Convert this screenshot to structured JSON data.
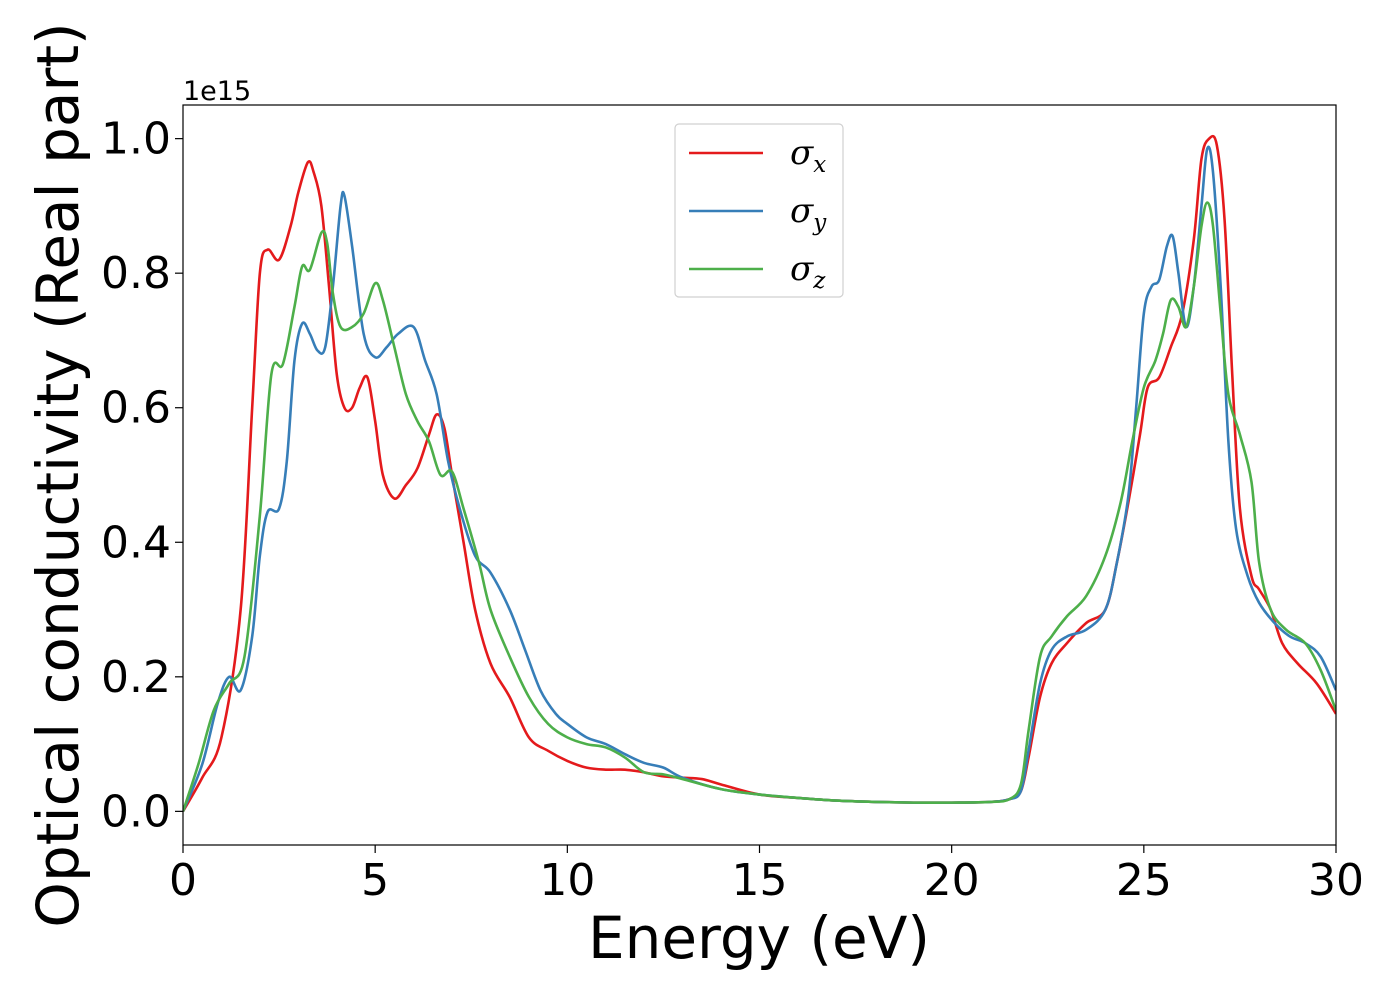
{
  "chart_data": {
    "type": "line",
    "title": "",
    "xlabel": "Energy (eV)",
    "ylabel": "Optical conductivity (Real part)",
    "y_offset_label": "1e15",
    "xlim": [
      0,
      30
    ],
    "ylim": [
      -0.05,
      1.05
    ],
    "xticks": [
      0,
      5,
      10,
      15,
      20,
      25,
      30
    ],
    "xtick_labels": [
      "0",
      "5",
      "10",
      "15",
      "20",
      "25",
      "30"
    ],
    "yticks": [
      0.0,
      0.2,
      0.4,
      0.6,
      0.8,
      1.0
    ],
    "ytick_labels": [
      "0.0",
      "0.2",
      "0.4",
      "0.6",
      "0.8",
      "1.0"
    ],
    "grid": false,
    "legend_position": "top-center",
    "series": [
      {
        "name": "σx",
        "symbol": "σ",
        "subscript": "x",
        "color": "#e41a1c",
        "points": [
          [
            0,
            0
          ],
          [
            0.5,
            0.05
          ],
          [
            1.0,
            0.11
          ],
          [
            1.5,
            0.3
          ],
          [
            1.8,
            0.6
          ],
          [
            2.0,
            0.8
          ],
          [
            2.2,
            0.835
          ],
          [
            2.5,
            0.82
          ],
          [
            2.8,
            0.87
          ],
          [
            3.0,
            0.92
          ],
          [
            3.25,
            0.965
          ],
          [
            3.4,
            0.95
          ],
          [
            3.6,
            0.9
          ],
          [
            3.8,
            0.78
          ],
          [
            4.0,
            0.65
          ],
          [
            4.2,
            0.6
          ],
          [
            4.4,
            0.6
          ],
          [
            4.6,
            0.63
          ],
          [
            4.8,
            0.645
          ],
          [
            5.0,
            0.58
          ],
          [
            5.2,
            0.5
          ],
          [
            5.5,
            0.465
          ],
          [
            5.8,
            0.485
          ],
          [
            6.1,
            0.51
          ],
          [
            6.4,
            0.56
          ],
          [
            6.6,
            0.59
          ],
          [
            6.8,
            0.57
          ],
          [
            7.0,
            0.5
          ],
          [
            7.3,
            0.4
          ],
          [
            7.6,
            0.3
          ],
          [
            8.0,
            0.22
          ],
          [
            8.5,
            0.17
          ],
          [
            9.0,
            0.11
          ],
          [
            9.5,
            0.09
          ],
          [
            10.0,
            0.075
          ],
          [
            10.5,
            0.065
          ],
          [
            11.0,
            0.062
          ],
          [
            11.5,
            0.062
          ],
          [
            12.0,
            0.058
          ],
          [
            12.5,
            0.052
          ],
          [
            13.0,
            0.05
          ],
          [
            13.5,
            0.048
          ],
          [
            14.0,
            0.04
          ],
          [
            15.0,
            0.025
          ],
          [
            16.0,
            0.02
          ],
          [
            17.0,
            0.016
          ],
          [
            18.0,
            0.014
          ],
          [
            19.0,
            0.013
          ],
          [
            20.0,
            0.013
          ],
          [
            21.0,
            0.014
          ],
          [
            21.5,
            0.018
          ],
          [
            21.8,
            0.03
          ],
          [
            22.0,
            0.08
          ],
          [
            22.3,
            0.17
          ],
          [
            22.6,
            0.22
          ],
          [
            23.0,
            0.25
          ],
          [
            23.5,
            0.28
          ],
          [
            24.0,
            0.3
          ],
          [
            24.3,
            0.37
          ],
          [
            24.6,
            0.46
          ],
          [
            24.9,
            0.56
          ],
          [
            25.1,
            0.63
          ],
          [
            25.4,
            0.645
          ],
          [
            25.7,
            0.69
          ],
          [
            26.0,
            0.74
          ],
          [
            26.3,
            0.85
          ],
          [
            26.5,
            0.97
          ],
          [
            26.7,
            1.0
          ],
          [
            26.9,
            0.99
          ],
          [
            27.1,
            0.88
          ],
          [
            27.3,
            0.65
          ],
          [
            27.5,
            0.45
          ],
          [
            27.8,
            0.35
          ],
          [
            28.0,
            0.33
          ],
          [
            28.3,
            0.3
          ],
          [
            28.6,
            0.25
          ],
          [
            29.0,
            0.22
          ],
          [
            29.5,
            0.19
          ],
          [
            30.0,
            0.145
          ]
        ]
      },
      {
        "name": "σy",
        "symbol": "σ",
        "subscript": "y",
        "color": "#377eb8",
        "points": [
          [
            0,
            0
          ],
          [
            0.5,
            0.07
          ],
          [
            0.9,
            0.16
          ],
          [
            1.2,
            0.2
          ],
          [
            1.5,
            0.18
          ],
          [
            1.8,
            0.26
          ],
          [
            2.0,
            0.38
          ],
          [
            2.2,
            0.445
          ],
          [
            2.5,
            0.45
          ],
          [
            2.7,
            0.52
          ],
          [
            2.9,
            0.67
          ],
          [
            3.1,
            0.725
          ],
          [
            3.3,
            0.71
          ],
          [
            3.5,
            0.685
          ],
          [
            3.7,
            0.69
          ],
          [
            3.9,
            0.78
          ],
          [
            4.1,
            0.9
          ],
          [
            4.2,
            0.915
          ],
          [
            4.4,
            0.84
          ],
          [
            4.7,
            0.71
          ],
          [
            5.0,
            0.675
          ],
          [
            5.3,
            0.69
          ],
          [
            5.6,
            0.71
          ],
          [
            6.0,
            0.72
          ],
          [
            6.3,
            0.67
          ],
          [
            6.6,
            0.62
          ],
          [
            6.9,
            0.52
          ],
          [
            7.2,
            0.45
          ],
          [
            7.6,
            0.38
          ],
          [
            8.0,
            0.355
          ],
          [
            8.5,
            0.3
          ],
          [
            8.9,
            0.24
          ],
          [
            9.3,
            0.18
          ],
          [
            9.7,
            0.145
          ],
          [
            10.0,
            0.13
          ],
          [
            10.5,
            0.11
          ],
          [
            11.0,
            0.1
          ],
          [
            11.5,
            0.085
          ],
          [
            12.0,
            0.072
          ],
          [
            12.5,
            0.065
          ],
          [
            13.0,
            0.05
          ],
          [
            14.0,
            0.033
          ],
          [
            15.0,
            0.025
          ],
          [
            16.0,
            0.02
          ],
          [
            17.0,
            0.016
          ],
          [
            18.0,
            0.014
          ],
          [
            19.0,
            0.013
          ],
          [
            20.0,
            0.013
          ],
          [
            21.0,
            0.014
          ],
          [
            21.5,
            0.018
          ],
          [
            21.8,
            0.03
          ],
          [
            22.0,
            0.09
          ],
          [
            22.3,
            0.19
          ],
          [
            22.6,
            0.24
          ],
          [
            23.0,
            0.26
          ],
          [
            23.5,
            0.27
          ],
          [
            24.0,
            0.3
          ],
          [
            24.3,
            0.37
          ],
          [
            24.6,
            0.47
          ],
          [
            24.8,
            0.6
          ],
          [
            25.0,
            0.74
          ],
          [
            25.2,
            0.78
          ],
          [
            25.4,
            0.79
          ],
          [
            25.6,
            0.84
          ],
          [
            25.75,
            0.855
          ],
          [
            25.9,
            0.8
          ],
          [
            26.1,
            0.72
          ],
          [
            26.3,
            0.78
          ],
          [
            26.5,
            0.9
          ],
          [
            26.65,
            0.985
          ],
          [
            26.8,
            0.95
          ],
          [
            27.0,
            0.78
          ],
          [
            27.2,
            0.55
          ],
          [
            27.4,
            0.42
          ],
          [
            27.7,
            0.35
          ],
          [
            28.0,
            0.31
          ],
          [
            28.4,
            0.28
          ],
          [
            28.8,
            0.26
          ],
          [
            29.2,
            0.25
          ],
          [
            29.6,
            0.23
          ],
          [
            30.0,
            0.18
          ]
        ]
      },
      {
        "name": "σz",
        "symbol": "σ",
        "subscript": "z",
        "color": "#4daf4a",
        "points": [
          [
            0,
            0
          ],
          [
            0.4,
            0.07
          ],
          [
            0.8,
            0.15
          ],
          [
            1.2,
            0.19
          ],
          [
            1.6,
            0.23
          ],
          [
            2.0,
            0.44
          ],
          [
            2.3,
            0.65
          ],
          [
            2.6,
            0.665
          ],
          [
            2.9,
            0.75
          ],
          [
            3.1,
            0.81
          ],
          [
            3.3,
            0.805
          ],
          [
            3.6,
            0.86
          ],
          [
            3.75,
            0.845
          ],
          [
            3.9,
            0.77
          ],
          [
            4.1,
            0.72
          ],
          [
            4.4,
            0.72
          ],
          [
            4.7,
            0.74
          ],
          [
            5.0,
            0.785
          ],
          [
            5.2,
            0.76
          ],
          [
            5.5,
            0.69
          ],
          [
            5.8,
            0.62
          ],
          [
            6.1,
            0.58
          ],
          [
            6.4,
            0.55
          ],
          [
            6.7,
            0.5
          ],
          [
            7.0,
            0.505
          ],
          [
            7.3,
            0.45
          ],
          [
            7.7,
            0.37
          ],
          [
            8.0,
            0.3
          ],
          [
            8.5,
            0.23
          ],
          [
            9.0,
            0.17
          ],
          [
            9.5,
            0.13
          ],
          [
            10.0,
            0.11
          ],
          [
            10.5,
            0.1
          ],
          [
            11.0,
            0.095
          ],
          [
            11.5,
            0.08
          ],
          [
            12.0,
            0.058
          ],
          [
            12.5,
            0.055
          ],
          [
            13.0,
            0.048
          ],
          [
            14.0,
            0.033
          ],
          [
            15.0,
            0.025
          ],
          [
            16.0,
            0.02
          ],
          [
            17.0,
            0.016
          ],
          [
            18.0,
            0.014
          ],
          [
            19.0,
            0.013
          ],
          [
            20.0,
            0.013
          ],
          [
            21.0,
            0.014
          ],
          [
            21.5,
            0.018
          ],
          [
            21.8,
            0.04
          ],
          [
            22.0,
            0.12
          ],
          [
            22.3,
            0.23
          ],
          [
            22.6,
            0.26
          ],
          [
            23.0,
            0.29
          ],
          [
            23.5,
            0.32
          ],
          [
            24.0,
            0.38
          ],
          [
            24.4,
            0.46
          ],
          [
            24.7,
            0.55
          ],
          [
            25.0,
            0.63
          ],
          [
            25.3,
            0.67
          ],
          [
            25.5,
            0.71
          ],
          [
            25.7,
            0.76
          ],
          [
            25.9,
            0.75
          ],
          [
            26.1,
            0.72
          ],
          [
            26.3,
            0.78
          ],
          [
            26.5,
            0.87
          ],
          [
            26.65,
            0.905
          ],
          [
            26.8,
            0.87
          ],
          [
            27.0,
            0.74
          ],
          [
            27.2,
            0.62
          ],
          [
            27.5,
            0.56
          ],
          [
            27.8,
            0.49
          ],
          [
            28.0,
            0.37
          ],
          [
            28.3,
            0.3
          ],
          [
            28.7,
            0.27
          ],
          [
            29.2,
            0.25
          ],
          [
            29.6,
            0.21
          ],
          [
            30.0,
            0.15
          ]
        ]
      }
    ]
  }
}
